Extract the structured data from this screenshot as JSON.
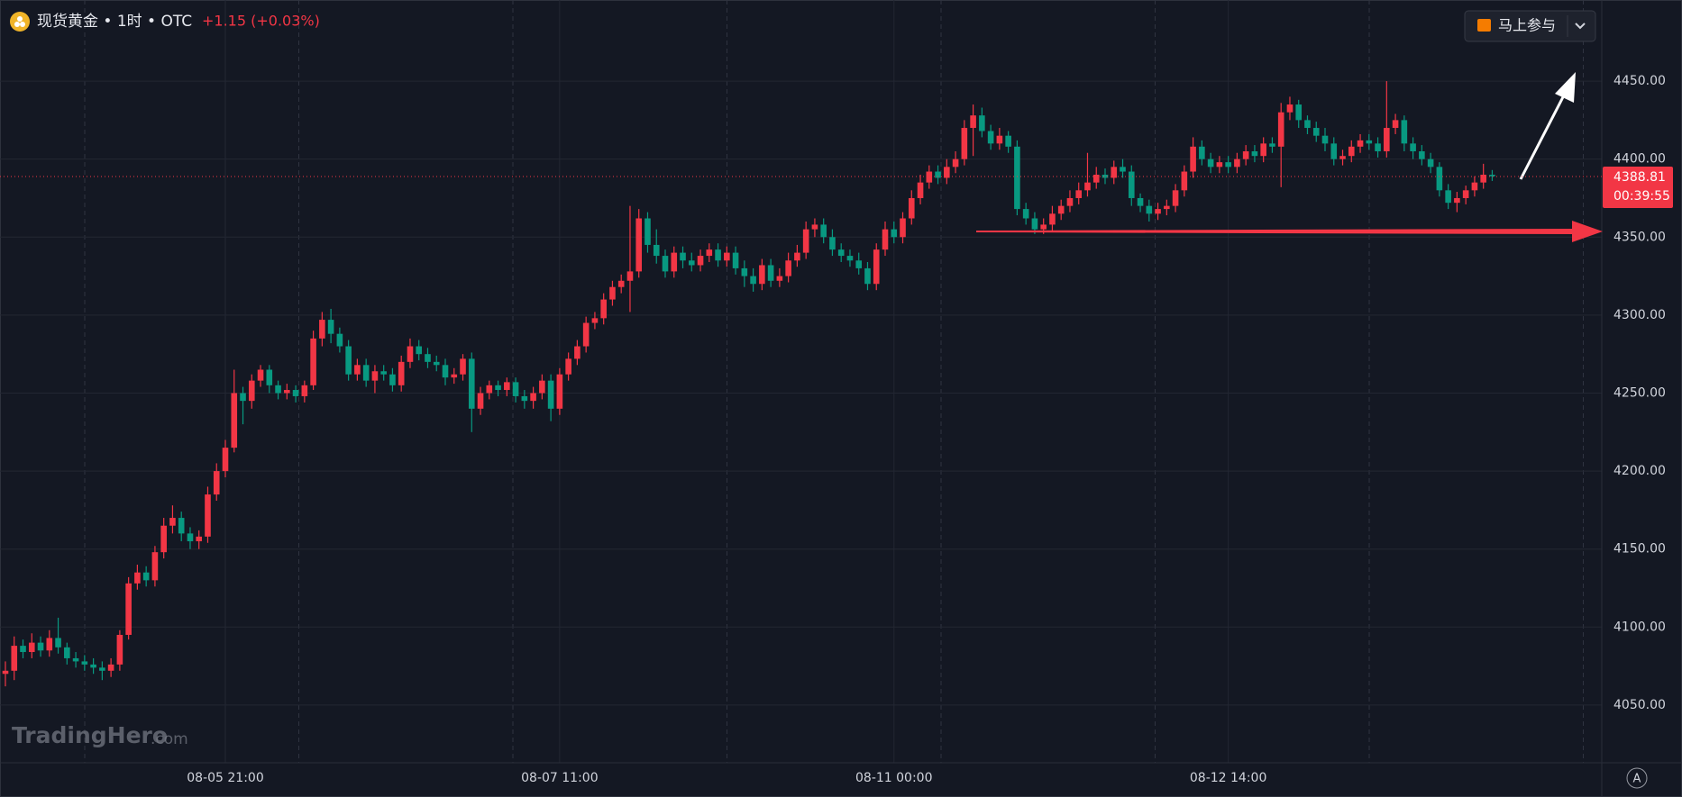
{
  "chart_data": {
    "type": "candlestick",
    "title": "现货黄金 • 1时 • OTC",
    "change": "+1.15 (+0.03%)",
    "button": "马上参与",
    "watermark": {
      "name": "TradingHero",
      "suffix": ".com"
    },
    "axis_badge": "A",
    "up_color": "#f23645",
    "down_color": "#089981",
    "last_price": 4388.81,
    "countdown": "00:39:55",
    "ylim": [
      4013,
      4502
    ],
    "yticks": [
      {
        "value": 4050,
        "label": "4050.00"
      },
      {
        "value": 4100,
        "label": "4100.00"
      },
      {
        "value": 4150,
        "label": "4150.00"
      },
      {
        "value": 4200,
        "label": "4200.00"
      },
      {
        "value": 4250,
        "label": "4250.00"
      },
      {
        "value": 4300,
        "label": "4300.00"
      },
      {
        "value": 4350,
        "label": "4350.00"
      },
      {
        "value": 4400,
        "label": "4400.00"
      },
      {
        "value": 4450,
        "label": "4450.00"
      }
    ],
    "categories": [
      null,
      null,
      null,
      null,
      null,
      null,
      null,
      null,
      null,
      null,
      null,
      null,
      null,
      null,
      null,
      null,
      null,
      null,
      null,
      null,
      null,
      null,
      null,
      null,
      null,
      "08-05 21:00",
      null,
      null,
      null,
      null,
      null,
      null,
      null,
      null,
      null,
      null,
      null,
      null,
      null,
      null,
      null,
      null,
      null,
      null,
      null,
      null,
      null,
      null,
      null,
      null,
      null,
      null,
      null,
      null,
      null,
      null,
      null,
      null,
      null,
      null,
      null,
      null,
      null,
      "08-07 11:00",
      null,
      null,
      null,
      null,
      null,
      null,
      null,
      null,
      null,
      null,
      null,
      null,
      null,
      null,
      null,
      null,
      null,
      null,
      null,
      null,
      null,
      null,
      null,
      null,
      null,
      null,
      null,
      null,
      null,
      null,
      null,
      null,
      null,
      null,
      null,
      null,
      null,
      "08-11 00:00",
      null,
      null,
      null,
      null,
      null,
      null,
      null,
      null,
      null,
      null,
      null,
      null,
      null,
      null,
      null,
      null,
      null,
      null,
      null,
      null,
      null,
      null,
      null,
      null,
      null,
      null,
      null,
      null,
      null,
      null,
      null,
      null,
      null,
      null,
      null,
      null,
      null,
      "08-12 14:00",
      null,
      null,
      null,
      null,
      null,
      null,
      null,
      null,
      null,
      null,
      null,
      null,
      null,
      null,
      null,
      null,
      null,
      null,
      null,
      null,
      null,
      null,
      null,
      null,
      null,
      null,
      null,
      null,
      null,
      null
    ],
    "open": [
      4070,
      4072,
      4088,
      4084,
      4090,
      4085,
      4093,
      4087,
      4080,
      4078,
      4076,
      4074,
      4072,
      4076,
      4095,
      4128,
      4135,
      4130,
      4148,
      4165,
      4170,
      4160,
      4155,
      4158,
      4185,
      4200,
      4215,
      4250,
      4245,
      4258,
      4265,
      4255,
      4250,
      4252,
      4248,
      4255,
      4285,
      4297,
      4288,
      4280,
      4262,
      4268,
      4258,
      4264,
      4262,
      4255,
      4270,
      4280,
      4275,
      4270,
      4268,
      4260,
      4262,
      4272,
      4240,
      4250,
      4255,
      4252,
      4257,
      4248,
      4245,
      4250,
      4258,
      4240,
      4262,
      4272,
      4280,
      4295,
      4298,
      4310,
      4318,
      4322,
      4328,
      4362,
      4345,
      4338,
      4328,
      4340,
      4335,
      4332,
      4338,
      4342,
      4335,
      4340,
      4330,
      4325,
      4320,
      4332,
      4322,
      4325,
      4335,
      4340,
      4355,
      4358,
      4350,
      4342,
      4338,
      4335,
      4330,
      4320,
      4342,
      4355,
      4350,
      4362,
      4375,
      4385,
      4392,
      4388,
      4395,
      4400,
      4420,
      4428,
      4418,
      4410,
      4415,
      4408,
      4368,
      4362,
      4355,
      4358,
      4365,
      4370,
      4375,
      4380,
      4385,
      4390,
      4388,
      4395,
      4392,
      4375,
      4370,
      4365,
      4368,
      4370,
      4380,
      4392,
      4408,
      4400,
      4395,
      4398,
      4395,
      4400,
      4405,
      4402,
      4410,
      4408,
      4430,
      4435,
      4425,
      4420,
      4415,
      4410,
      4400,
      4402,
      4408,
      4412,
      4410,
      4405,
      4420,
      4425,
      4410,
      4405,
      4400,
      4395,
      4380,
      4372,
      4375,
      4380,
      4385,
      4390
    ],
    "high": [
      4078,
      4094,
      4092,
      4096,
      4094,
      4098,
      4106,
      4090,
      4084,
      4082,
      4080,
      4078,
      4080,
      4098,
      4132,
      4140,
      4139,
      4152,
      4170,
      4178,
      4174,
      4164,
      4162,
      4190,
      4205,
      4220,
      4265,
      4254,
      4262,
      4268,
      4268,
      4258,
      4256,
      4255,
      4258,
      4290,
      4302,
      4304,
      4292,
      4284,
      4272,
      4272,
      4268,
      4268,
      4266,
      4274,
      4285,
      4284,
      4279,
      4274,
      4272,
      4266,
      4275,
      4276,
      4254,
      4258,
      4258,
      4260,
      4260,
      4252,
      4254,
      4262,
      4262,
      4266,
      4276,
      4284,
      4299,
      4302,
      4314,
      4322,
      4326,
      4370,
      4368,
      4366,
      4355,
      4342,
      4344,
      4344,
      4340,
      4342,
      4346,
      4346,
      4344,
      4344,
      4335,
      4330,
      4336,
      4336,
      4330,
      4340,
      4345,
      4360,
      4362,
      4362,
      4355,
      4346,
      4342,
      4340,
      4334,
      4346,
      4360,
      4360,
      4366,
      4380,
      4390,
      4396,
      4396,
      4400,
      4405,
      4425,
      4435,
      4433,
      4422,
      4420,
      4418,
      4412,
      4372,
      4366,
      4362,
      4370,
      4374,
      4380,
      4385,
      4404,
      4395,
      4394,
      4399,
      4400,
      4396,
      4378,
      4374,
      4372,
      4374,
      4384,
      4396,
      4414,
      4412,
      4404,
      4402,
      4402,
      4404,
      4409,
      4409,
      4414,
      4414,
      4436,
      4440,
      4438,
      4428,
      4424,
      4420,
      4414,
      4406,
      4412,
      4416,
      4416,
      4414,
      4450,
      4429,
      4428,
      4414,
      4409,
      4404,
      4398,
      4384,
      4379,
      4383,
      4389,
      4397,
      4393
    ],
    "low": [
      4062,
      4066,
      4080,
      4080,
      4081,
      4081,
      4083,
      4076,
      4074,
      4072,
      4070,
      4066,
      4068,
      4072,
      4092,
      4124,
      4126,
      4126,
      4144,
      4160,
      4155,
      4150,
      4150,
      4154,
      4181,
      4196,
      4212,
      4230,
      4240,
      4254,
      4250,
      4246,
      4246,
      4244,
      4244,
      4252,
      4280,
      4282,
      4276,
      4258,
      4258,
      4254,
      4250,
      4258,
      4251,
      4251,
      4266,
      4271,
      4266,
      4264,
      4255,
      4256,
      4258,
      4225,
      4236,
      4246,
      4248,
      4248,
      4244,
      4240,
      4240,
      4246,
      4232,
      4236,
      4258,
      4268,
      4276,
      4291,
      4294,
      4306,
      4314,
      4302,
      4324,
      4340,
      4333,
      4324,
      4324,
      4330,
      4328,
      4328,
      4334,
      4331,
      4331,
      4326,
      4318,
      4315,
      4316,
      4318,
      4318,
      4321,
      4331,
      4336,
      4350,
      4346,
      4338,
      4334,
      4331,
      4326,
      4316,
      4316,
      4338,
      4346,
      4346,
      4358,
      4371,
      4381,
      4384,
      4384,
      4391,
      4396,
      4402,
      4414,
      4406,
      4406,
      4404,
      4364,
      4358,
      4352,
      4352,
      4354,
      4361,
      4366,
      4371,
      4376,
      4381,
      4384,
      4384,
      4388,
      4370,
      4366,
      4360,
      4361,
      4364,
      4366,
      4376,
      4388,
      4396,
      4391,
      4391,
      4391,
      4391,
      4396,
      4398,
      4398,
      4404,
      4382,
      4425,
      4420,
      4416,
      4411,
      4405,
      4396,
      4396,
      4398,
      4404,
      4406,
      4401,
      4401,
      4416,
      4405,
      4400,
      4396,
      4391,
      4376,
      4368,
      4366,
      4371,
      4376,
      4381,
      4386
    ],
    "close": [
      4072,
      4088,
      4084,
      4090,
      4085,
      4093,
      4087,
      4080,
      4078,
      4076,
      4074,
      4072,
      4076,
      4095,
      4128,
      4135,
      4130,
      4148,
      4165,
      4170,
      4160,
      4155,
      4158,
      4185,
      4200,
      4215,
      4250,
      4245,
      4258,
      4265,
      4255,
      4250,
      4252,
      4248,
      4255,
      4285,
      4297,
      4288,
      4280,
      4262,
      4268,
      4258,
      4264,
      4262,
      4255,
      4270,
      4280,
      4275,
      4270,
      4268,
      4260,
      4262,
      4272,
      4240,
      4250,
      4255,
      4252,
      4257,
      4248,
      4245,
      4250,
      4258,
      4240,
      4262,
      4272,
      4280,
      4295,
      4298,
      4310,
      4318,
      4322,
      4328,
      4362,
      4345,
      4338,
      4328,
      4340,
      4335,
      4332,
      4338,
      4342,
      4335,
      4340,
      4330,
      4325,
      4320,
      4332,
      4322,
      4325,
      4335,
      4340,
      4355,
      4358,
      4350,
      4342,
      4338,
      4335,
      4330,
      4320,
      4342,
      4355,
      4350,
      4362,
      4375,
      4385,
      4392,
      4388,
      4395,
      4400,
      4420,
      4428,
      4418,
      4410,
      4415,
      4408,
      4368,
      4362,
      4355,
      4358,
      4365,
      4370,
      4375,
      4380,
      4385,
      4390,
      4388,
      4395,
      4392,
      4375,
      4370,
      4365,
      4368,
      4370,
      4380,
      4392,
      4408,
      4400,
      4395,
      4398,
      4395,
      4400,
      4405,
      4402,
      4410,
      4408,
      4430,
      4435,
      4425,
      4420,
      4415,
      4410,
      4400,
      4402,
      4408,
      4412,
      4410,
      4405,
      4420,
      4425,
      4410,
      4405,
      4400,
      4395,
      4380,
      4372,
      4375,
      4380,
      4385,
      4390,
      4389
    ]
  }
}
